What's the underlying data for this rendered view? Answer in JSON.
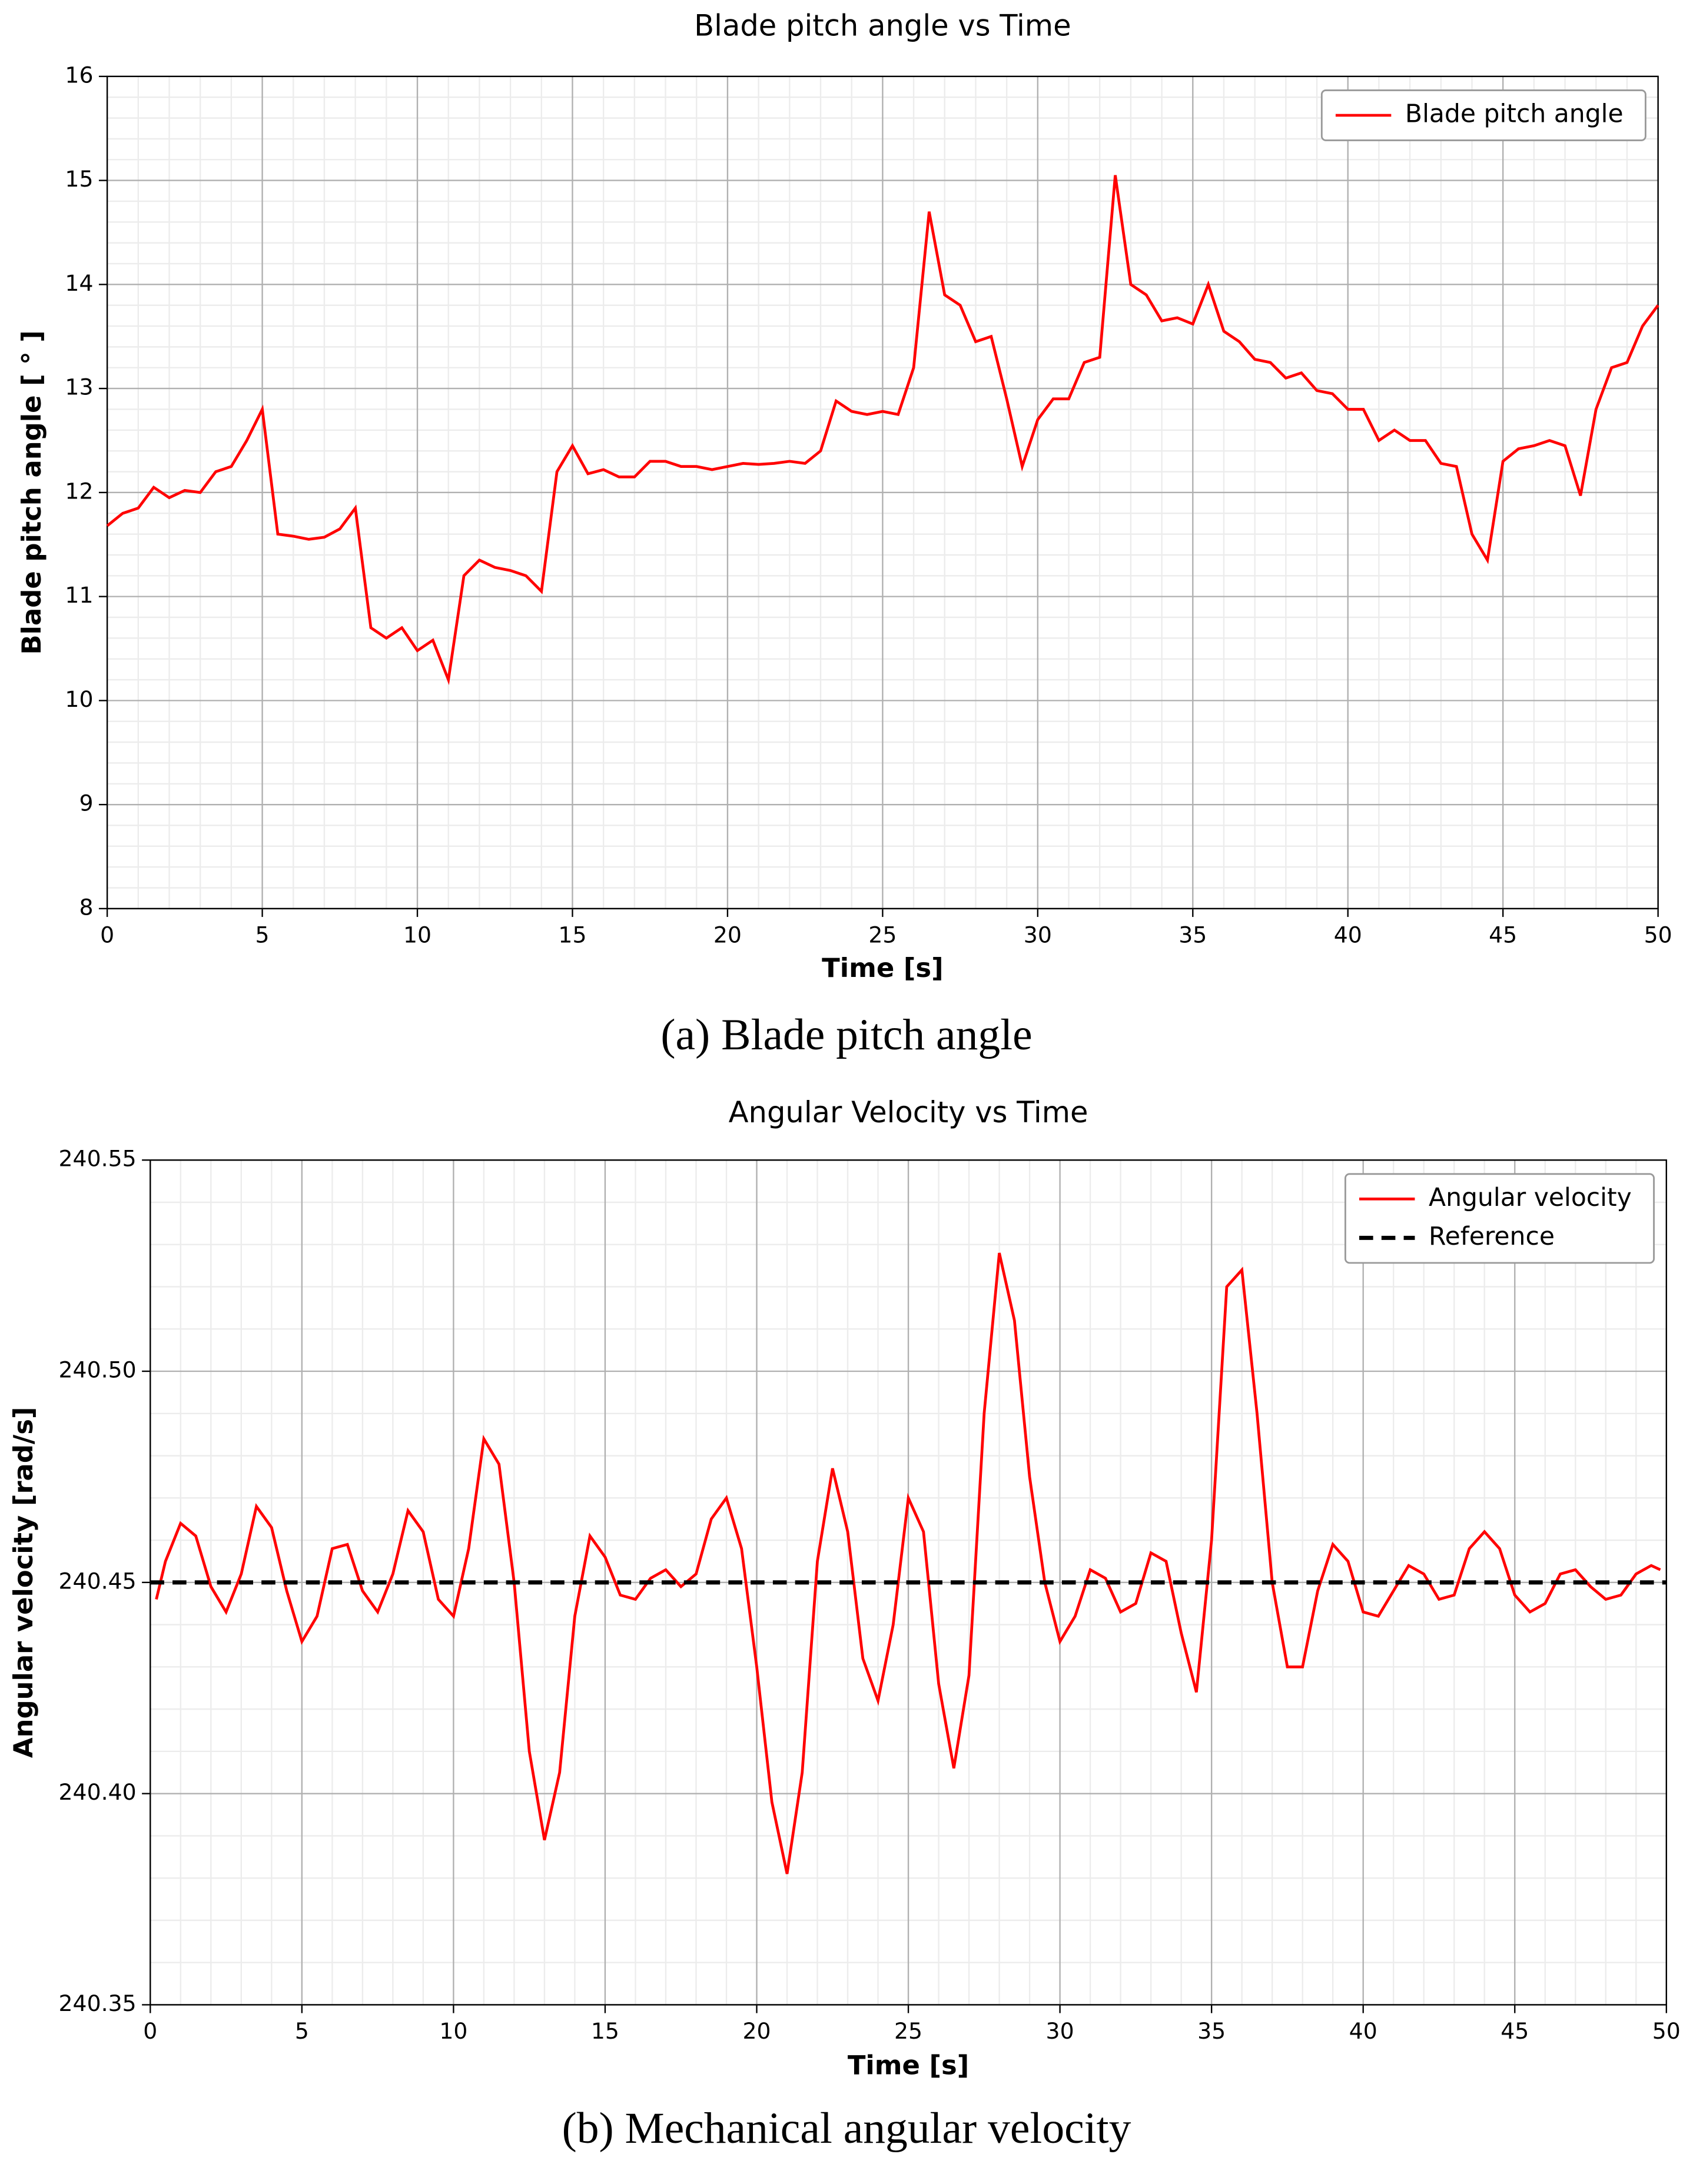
{
  "chart_data": [
    {
      "type": "line",
      "title": "Blade pitch angle vs Time",
      "xlabel": "Time [s]",
      "ylabel": "Blade pitch angle [ ° ]",
      "caption": "(a) Blade pitch angle",
      "xlim": [
        0,
        50
      ],
      "xticks": [
        0,
        5,
        10,
        15,
        20,
        25,
        30,
        35,
        40,
        45,
        50
      ],
      "ylim": [
        8,
        16
      ],
      "yticks": [
        8,
        9,
        10,
        11,
        12,
        13,
        14,
        15,
        16
      ],
      "grid": true,
      "minor_grid": true,
      "legend": "upper right",
      "series": [
        {
          "name": "Blade pitch angle",
          "color": "#ff0000",
          "dash": false,
          "x": [
            0,
            0.5,
            1,
            1.5,
            2,
            2.5,
            3,
            3.5,
            4,
            4.5,
            5,
            5.5,
            6,
            6.5,
            7,
            7.5,
            8,
            8.5,
            9,
            9.5,
            10,
            10.5,
            11,
            11.5,
            12,
            12.5,
            13,
            13.5,
            14,
            14.5,
            15,
            15.5,
            16,
            16.5,
            17,
            17.5,
            18,
            18.5,
            19,
            19.5,
            20,
            20.5,
            21,
            21.5,
            22,
            22.5,
            23,
            23.5,
            24,
            24.5,
            25,
            25.5,
            26,
            26.5,
            27,
            27.5,
            28,
            28.5,
            29,
            29.5,
            30,
            30.5,
            31,
            31.5,
            32,
            32.5,
            33,
            33.5,
            34,
            34.5,
            35,
            35.5,
            36,
            36.5,
            37,
            37.5,
            38,
            38.5,
            39,
            39.5,
            40,
            40.5,
            41,
            41.5,
            42,
            42.5,
            43,
            43.5,
            44,
            44.5,
            45,
            45.5,
            46,
            46.5,
            47,
            47.5,
            48,
            48.5,
            49,
            49.5,
            50
          ],
          "values": [
            11.68,
            11.8,
            11.85,
            12.05,
            11.95,
            12.02,
            12.0,
            12.2,
            12.25,
            12.5,
            12.8,
            11.6,
            11.58,
            11.55,
            11.57,
            11.65,
            11.85,
            10.7,
            10.6,
            10.7,
            10.48,
            10.58,
            10.2,
            11.2,
            11.35,
            11.28,
            11.25,
            11.2,
            11.05,
            12.2,
            12.45,
            12.18,
            12.22,
            12.15,
            12.15,
            12.3,
            12.3,
            12.25,
            12.25,
            12.22,
            12.25,
            12.28,
            12.27,
            12.28,
            12.3,
            12.28,
            12.4,
            12.88,
            12.78,
            12.75,
            12.78,
            12.75,
            13.2,
            14.7,
            13.9,
            13.8,
            13.45,
            13.5,
            12.9,
            12.25,
            12.7,
            12.9,
            12.9,
            13.25,
            13.3,
            15.05,
            14.0,
            13.9,
            13.65,
            13.68,
            13.62,
            14.0,
            13.55,
            13.45,
            13.28,
            13.25,
            13.1,
            13.15,
            12.98,
            12.95,
            12.8,
            12.8,
            12.5,
            12.6,
            12.5,
            12.5,
            12.28,
            12.25,
            11.6,
            11.35,
            12.3,
            12.42,
            12.45,
            12.5,
            12.45,
            11.97,
            12.8,
            13.2,
            13.25,
            13.6,
            13.8
          ]
        }
      ]
    },
    {
      "type": "line",
      "title": "Angular Velocity vs Time",
      "xlabel": "Time [s]",
      "ylabel": "Angular velocity [rad/s]",
      "caption": "(b) Mechanical angular velocity",
      "xlim": [
        0,
        50
      ],
      "xticks": [
        0,
        5,
        10,
        15,
        20,
        25,
        30,
        35,
        40,
        45,
        50
      ],
      "ylim": [
        240.35,
        240.55
      ],
      "yticks": [
        240.35,
        {
          "value": 240.4,
          "label": "240.40"
        },
        240.45,
        {
          "value": 240.5,
          "label": "240.50"
        },
        240.55
      ],
      "grid": true,
      "minor_grid": true,
      "legend": "upper right",
      "series": [
        {
          "name": "Angular velocity",
          "color": "#ff0000",
          "dash": false,
          "x": [
            0.2,
            0.5,
            1,
            1.5,
            2,
            2.5,
            3,
            3.5,
            4,
            4.5,
            5,
            5.5,
            6,
            6.5,
            7,
            7.5,
            8,
            8.5,
            9,
            9.5,
            10,
            10.5,
            11,
            11.5,
            12,
            12.5,
            13,
            13.5,
            14,
            14.5,
            15,
            15.5,
            16,
            16.5,
            17,
            17.5,
            18,
            18.5,
            19,
            19.5,
            20,
            20.5,
            21,
            21.5,
            22,
            22.5,
            23,
            23.5,
            24,
            24.5,
            25,
            25.5,
            26,
            26.5,
            27,
            27.5,
            28,
            28.5,
            29,
            29.5,
            30,
            30.5,
            31,
            31.5,
            32,
            32.5,
            33,
            33.5,
            34,
            34.5,
            35,
            35.5,
            36,
            36.5,
            37,
            37.5,
            38,
            38.5,
            39,
            39.5,
            40,
            40.5,
            41,
            41.5,
            42,
            42.5,
            43,
            43.5,
            44,
            44.5,
            45,
            45.5,
            46,
            46.5,
            47,
            47.5,
            48,
            48.5,
            49,
            49.5,
            49.8
          ],
          "values": [
            240.446,
            240.455,
            240.464,
            240.461,
            240.449,
            240.443,
            240.452,
            240.468,
            240.463,
            240.448,
            240.436,
            240.442,
            240.458,
            240.459,
            240.448,
            240.443,
            240.452,
            240.467,
            240.462,
            240.446,
            240.442,
            240.458,
            240.484,
            240.478,
            240.45,
            240.41,
            240.389,
            240.405,
            240.442,
            240.461,
            240.456,
            240.447,
            240.446,
            240.451,
            240.453,
            240.449,
            240.452,
            240.465,
            240.47,
            240.458,
            240.43,
            240.398,
            240.381,
            240.405,
            240.455,
            240.477,
            240.462,
            240.432,
            240.422,
            240.44,
            240.47,
            240.462,
            240.426,
            240.406,
            240.428,
            240.49,
            240.528,
            240.512,
            240.475,
            240.45,
            240.436,
            240.442,
            240.453,
            240.451,
            240.443,
            240.445,
            240.457,
            240.455,
            240.438,
            240.424,
            240.46,
            240.52,
            240.524,
            240.49,
            240.45,
            240.43,
            240.43,
            240.448,
            240.459,
            240.455,
            240.443,
            240.442,
            240.448,
            240.454,
            240.452,
            240.446,
            240.447,
            240.458,
            240.462,
            240.458,
            240.447,
            240.443,
            240.445,
            240.452,
            240.453,
            240.449,
            240.446,
            240.447,
            240.452,
            240.454,
            240.453
          ]
        },
        {
          "name": "Reference",
          "color": "#000000",
          "dash": true,
          "x": [
            0,
            50
          ],
          "values": [
            240.45,
            240.45
          ]
        }
      ]
    }
  ]
}
